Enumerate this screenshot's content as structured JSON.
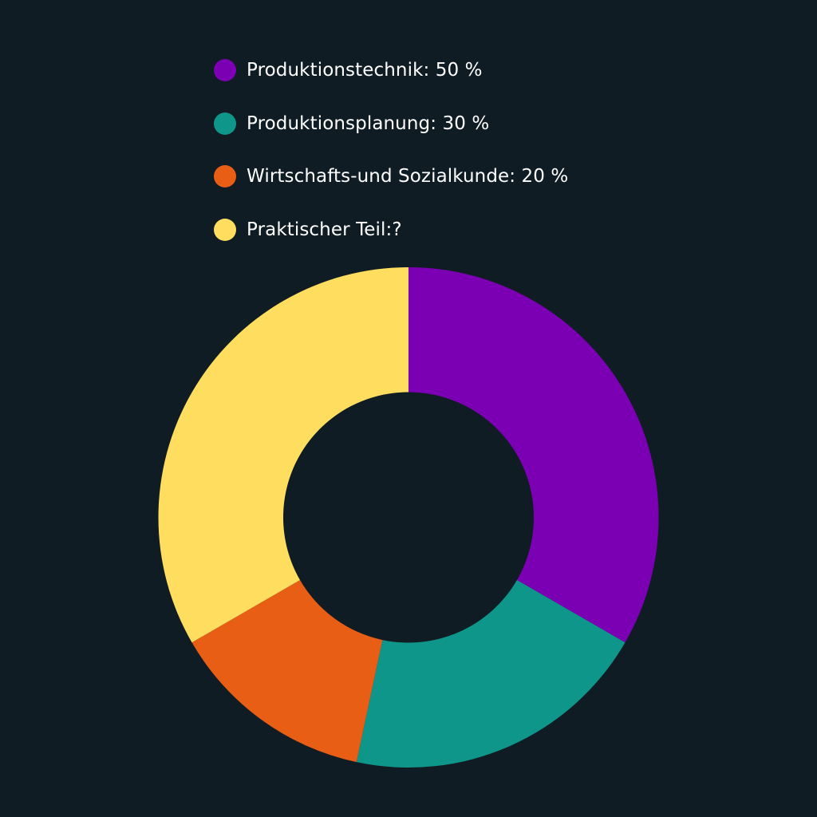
{
  "chart_data": {
    "type": "pie",
    "variant": "donut",
    "title": "",
    "legend_position": "top",
    "background": "#101c24",
    "slices": [
      {
        "label": "Produktionstechnik: 50 %",
        "value": 33.33,
        "color": "#7b00b3"
      },
      {
        "label": "Produktionsplanung: 30 %",
        "value": 20.0,
        "color": "#0e968a"
      },
      {
        "label": "Wirtschafts-und Sozialkunde: 20 %",
        "value": 13.33,
        "color": "#e95e15"
      },
      {
        "label": "Praktischer Teil:?",
        "value": 33.33,
        "color": "#ffdd5e"
      }
    ]
  }
}
